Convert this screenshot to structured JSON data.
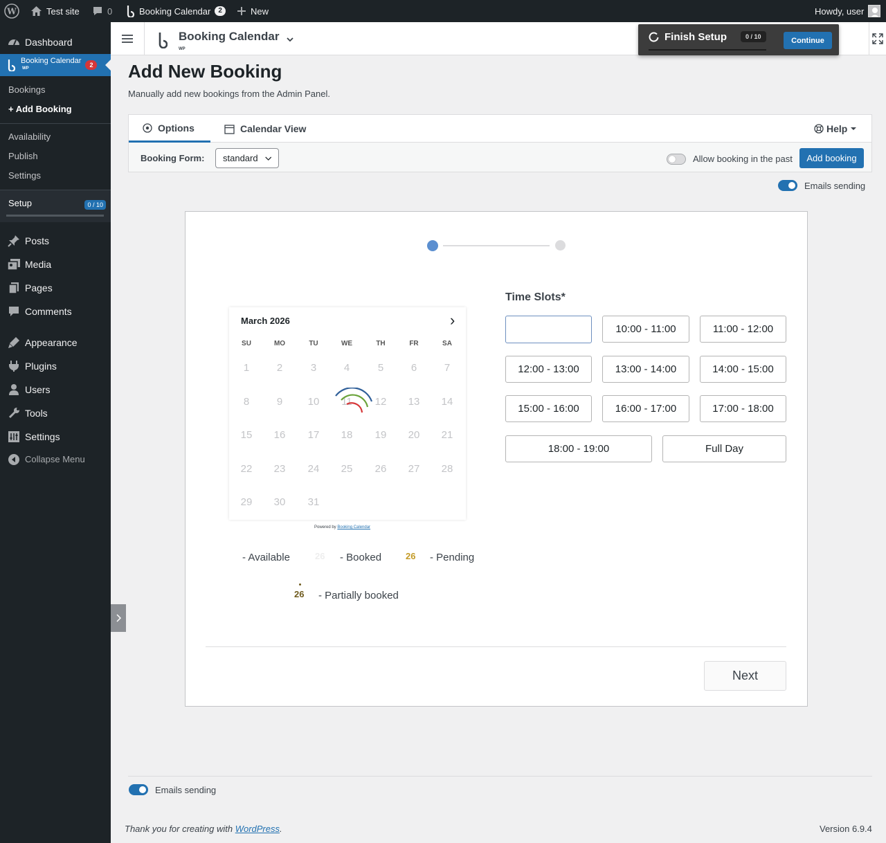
{
  "admin_bar": {
    "site_name": "Test site",
    "comments_count": "0",
    "plugin_name": "Booking Calendar",
    "plugin_badge": "2",
    "new_label": "New",
    "greeting": "Howdy, user"
  },
  "sidebar": {
    "dashboard": "Dashboard",
    "booking_calendar": {
      "label": "Booking Calendar",
      "sub": "WP",
      "badge": "2"
    },
    "submenu": [
      {
        "label": "Bookings"
      },
      {
        "label": "+ Add Booking"
      },
      {
        "label": "Availability"
      },
      {
        "label": "Publish"
      },
      {
        "label": "Settings"
      }
    ],
    "setup": {
      "label": "Setup",
      "badge": "0 / 10"
    },
    "items": [
      {
        "label": "Posts",
        "icon": "pin-icon"
      },
      {
        "label": "Media",
        "icon": "media-icon"
      },
      {
        "label": "Pages",
        "icon": "pages-icon"
      },
      {
        "label": "Comments",
        "icon": "comments-icon"
      },
      {
        "label": "Appearance",
        "icon": "appearance-icon"
      },
      {
        "label": "Plugins",
        "icon": "plugins-icon"
      },
      {
        "label": "Users",
        "icon": "users-icon"
      },
      {
        "label": "Tools",
        "icon": "tools-icon"
      },
      {
        "label": "Settings",
        "icon": "settings-icon"
      },
      {
        "label": "Collapse Menu",
        "icon": "collapse-icon"
      }
    ]
  },
  "plugin_header": {
    "title": "Booking Calendar",
    "sub": "WP"
  },
  "finish_setup": {
    "title": "Finish Setup",
    "count": "0 / 10",
    "progress": 0,
    "continue_label": "Continue"
  },
  "page": {
    "title": "Add New Booking",
    "description": "Manually add new bookings from the Admin Panel."
  },
  "tabs": {
    "options": "Options",
    "calendar_view": "Calendar View",
    "help": "Help"
  },
  "toolbar": {
    "form_label": "Booking Form:",
    "form_value": "standard",
    "allow_past_label": "Allow booking in the past",
    "add_booking_label": "Add booking",
    "emails_label": "Emails sending"
  },
  "form": {
    "calendar": {
      "month": "March 2026",
      "next_arrow": "›",
      "dow": [
        "SU",
        "MO",
        "TU",
        "WE",
        "TH",
        "FR",
        "SA"
      ],
      "weeks": [
        [
          "1",
          "2",
          "3",
          "4",
          "5",
          "6",
          "7"
        ],
        [
          "8",
          "9",
          "10",
          "11",
          "12",
          "13",
          "14"
        ],
        [
          "15",
          "16",
          "17",
          "18",
          "19",
          "20",
          "21"
        ],
        [
          "22",
          "23",
          "24",
          "25",
          "26",
          "27",
          "28"
        ],
        [
          "29",
          "30",
          "31",
          "",
          "",
          "",
          ""
        ]
      ],
      "powered_by": "Powered by",
      "powered_link": "Booking Calendar"
    },
    "time_slots": {
      "label": "Time Slots*",
      "slots": [
        "",
        "10:00 - 11:00",
        "11:00 - 12:00",
        "12:00 - 13:00",
        "13:00 - 14:00",
        "14:00 - 15:00",
        "15:00 - 16:00",
        "16:00 - 17:00",
        "17:00 - 18:00",
        "18:00 - 19:00",
        "Full Day"
      ]
    },
    "legend": {
      "available": "- Available",
      "booked_num": "26",
      "booked": "- Booked",
      "pending_num": "26",
      "pending": "- Pending",
      "partial_num": "26",
      "partial": "- Partially booked"
    },
    "next_label": "Next"
  },
  "footer": {
    "emails_label": "Emails sending",
    "thanks_prefix": "Thank you for creating with ",
    "thanks_link": "WordPress",
    "thanks_suffix": ".",
    "version": "Version 6.9.4"
  },
  "colors": {
    "accent": "#2271b1",
    "sidebar": "#1d2327",
    "pending": "#c49b27",
    "partial": "#6f5b1e"
  }
}
